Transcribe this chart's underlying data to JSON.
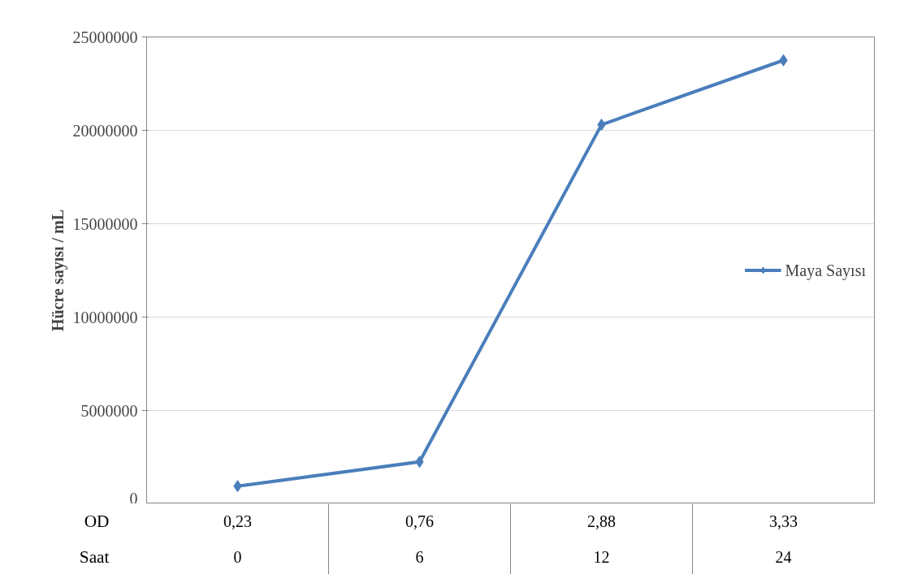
{
  "chart_data": {
    "type": "line",
    "ylabel": "Hücre sayısı / mL",
    "categories": [
      "0,23\n0",
      "0,76\n6",
      "2,88\n12",
      "3,33\n24"
    ],
    "series": [
      {
        "name": "Maya Sayısı",
        "color": "#4a7ebb",
        "values": [
          950000,
          2250000,
          20300000,
          23750000
        ]
      }
    ],
    "ylim": [
      0,
      25000000
    ],
    "yticks": [
      0,
      5000000,
      10000000,
      15000000,
      20000000,
      25000000
    ],
    "grid": "y",
    "legend": "right",
    "marker": "diamond",
    "line_style": "solid",
    "annotations": [
      "OD",
      "Saat"
    ]
  }
}
